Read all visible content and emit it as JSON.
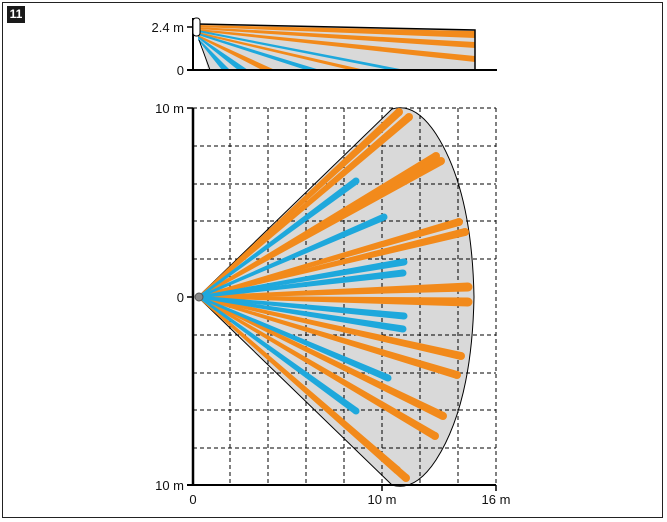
{
  "figure_number": "11",
  "side_view": {
    "height_label": "2.4 m",
    "zero_label": "0"
  },
  "top_view": {
    "y_top_label": "10 m",
    "y_mid_label": "0",
    "y_bottom_label": "10 m",
    "x_zero_label": "0",
    "x_mid_label": "10 m",
    "x_max_label": "16 m"
  },
  "colors": {
    "coverage_fill": "#d9d9d9",
    "long_zone": "#f28a1b",
    "short_zone": "#1ea8dc",
    "axis": "#000000",
    "grid": "#000000"
  }
}
